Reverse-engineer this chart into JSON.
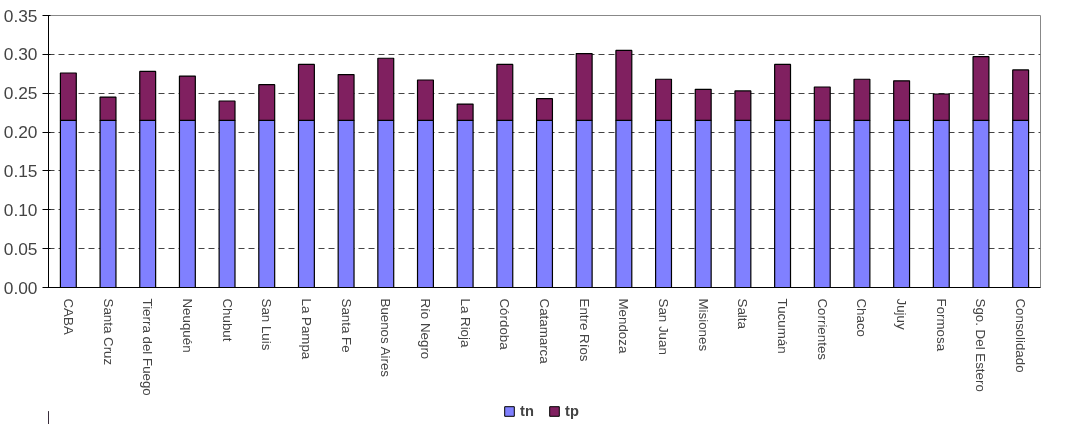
{
  "chart_data": {
    "type": "bar",
    "stacked": true,
    "categories": [
      "CABA",
      "Santa Cruz",
      "Tierra del Fuego",
      "Neuquén",
      "Chubut",
      "San Luis",
      "La Pampa",
      "Santa Fe",
      "Buenos Aires",
      "Río Negro",
      "La Rioja",
      "Córdoba",
      "Catamarca",
      "Entre Ríos",
      "Mendoza",
      "San Juan",
      "Misiones",
      "Salta",
      "Tucumán",
      "Corrientes",
      "Chaco",
      "Jujuy",
      "Formosa",
      "Sgo. Del Estero",
      "Consolidado"
    ],
    "series": [
      {
        "name": "tn",
        "color": "#8080ff",
        "values": [
          0.215,
          0.215,
          0.215,
          0.215,
          0.215,
          0.215,
          0.215,
          0.215,
          0.215,
          0.215,
          0.215,
          0.215,
          0.215,
          0.215,
          0.215,
          0.215,
          0.215,
          0.215,
          0.215,
          0.215,
          0.215,
          0.215,
          0.215,
          0.215,
          0.215
        ]
      },
      {
        "name": "tp",
        "color": "#802060",
        "values": [
          0.061,
          0.03,
          0.063,
          0.057,
          0.025,
          0.046,
          0.072,
          0.059,
          0.08,
          0.052,
          0.021,
          0.072,
          0.028,
          0.086,
          0.09,
          0.053,
          0.04,
          0.038,
          0.072,
          0.043,
          0.053,
          0.051,
          0.034,
          0.082,
          0.065
        ]
      }
    ],
    "ylim": [
      0,
      0.35
    ],
    "yticks": [
      {
        "value": 0,
        "label": "0.00"
      },
      {
        "value": 0.05,
        "label": "0.05"
      },
      {
        "value": 0.1,
        "label": "0.10"
      },
      {
        "value": 0.15,
        "label": "0.15"
      },
      {
        "value": 0.2,
        "label": "0.20"
      },
      {
        "value": 0.25,
        "label": "0.25"
      },
      {
        "value": 0.3,
        "label": "0.30"
      },
      {
        "value": 0.35,
        "label": "0.35"
      }
    ],
    "grid": "y",
    "legend": "bottom"
  }
}
